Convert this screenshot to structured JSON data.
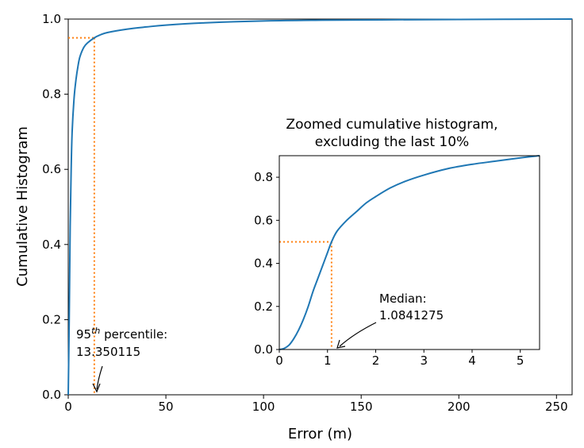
{
  "chart_data": [
    {
      "type": "line",
      "xlabel": "Error (m)",
      "ylabel": "Cumulative Histogram",
      "xlim": [
        0,
        258
      ],
      "ylim": [
        0,
        1.0
      ],
      "xticks": [
        "0",
        "50",
        "100",
        "150",
        "200",
        "250"
      ],
      "yticks": [
        "0.0",
        "0.2",
        "0.4",
        "0.6",
        "0.8",
        "1.0"
      ],
      "series": [
        {
          "color": "#1f77b4",
          "x": [
            0,
            0.5,
            1,
            1.5,
            2,
            3,
            4,
            5,
            6,
            8,
            10,
            13.35,
            16,
            20,
            30,
            40,
            50,
            70,
            100,
            130,
            160,
            200,
            258
          ],
          "y": [
            0,
            0.2,
            0.45,
            0.6,
            0.7,
            0.79,
            0.84,
            0.875,
            0.9,
            0.925,
            0.937,
            0.95,
            0.957,
            0.964,
            0.973,
            0.979,
            0.984,
            0.99,
            0.995,
            0.997,
            0.998,
            0.999,
            1.0
          ]
        }
      ],
      "percentile_marker": {
        "x": 13.350115,
        "y": 0.95,
        "color": "#ff7f0e"
      },
      "annotation": {
        "prefix": "95",
        "superscript": "th",
        "suffix": " percentile:",
        "value": "13.350115"
      }
    },
    {
      "type": "line",
      "title_line1": "Zoomed cumulative histogram,",
      "title_line2": "excluding the last 10%",
      "xlim": [
        0,
        5.4
      ],
      "ylim": [
        0,
        0.9
      ],
      "xticks": [
        "0",
        "1",
        "2",
        "3",
        "4",
        "5"
      ],
      "yticks": [
        "0.0",
        "0.2",
        "0.4",
        "0.6",
        "0.8"
      ],
      "series": [
        {
          "color": "#1f77b4",
          "x": [
            0,
            0.1,
            0.2,
            0.3,
            0.4,
            0.5,
            0.6,
            0.7,
            0.8,
            0.9,
            1.0,
            1.0841275,
            1.2,
            1.4,
            1.6,
            1.8,
            2.0,
            2.3,
            2.6,
            3.0,
            3.5,
            4.0,
            4.5,
            5.0,
            5.4
          ],
          "y": [
            0,
            0.005,
            0.02,
            0.05,
            0.09,
            0.14,
            0.2,
            0.27,
            0.33,
            0.39,
            0.45,
            0.5,
            0.55,
            0.6,
            0.64,
            0.68,
            0.71,
            0.75,
            0.78,
            0.81,
            0.84,
            0.86,
            0.875,
            0.89,
            0.9
          ]
        }
      ],
      "median_marker": {
        "x": 1.0841275,
        "y": 0.5,
        "color": "#ff7f0e"
      },
      "annotation": {
        "label": "Median:",
        "value": "1.0841275"
      }
    }
  ]
}
